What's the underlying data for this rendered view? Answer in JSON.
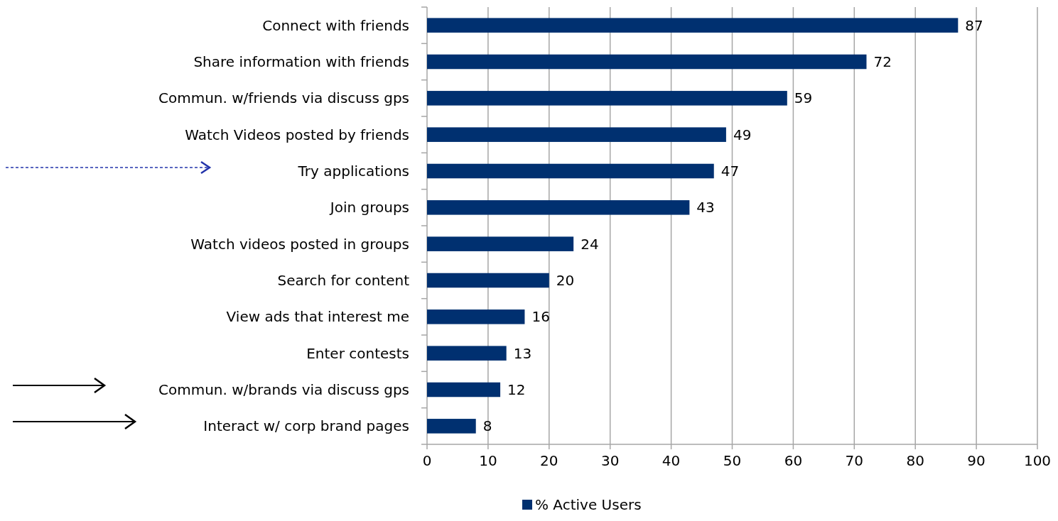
{
  "chart_data": {
    "type": "bar",
    "orientation": "horizontal",
    "categories": [
      "Connect with friends",
      "Share information with friends",
      "Commun. w/friends via discuss gps",
      "Watch Videos posted by friends",
      "Try applications",
      "Join groups",
      "Watch videos posted in groups",
      "Search for content",
      "View ads that interest me",
      "Enter contests",
      "Commun. w/brands via discuss gps",
      "Interact w/ corp brand pages"
    ],
    "series": [
      {
        "name": "% Active Users",
        "color": "#003070",
        "values": [
          87,
          72,
          59,
          49,
          47,
          43,
          24,
          20,
          16,
          13,
          12,
          8
        ]
      }
    ],
    "xlim": [
      0,
      100
    ],
    "xticks": [
      0,
      10,
      20,
      30,
      40,
      50,
      60,
      70,
      80,
      90,
      100
    ],
    "grid": "x",
    "legend": "bottom",
    "data_labels": true
  }
}
